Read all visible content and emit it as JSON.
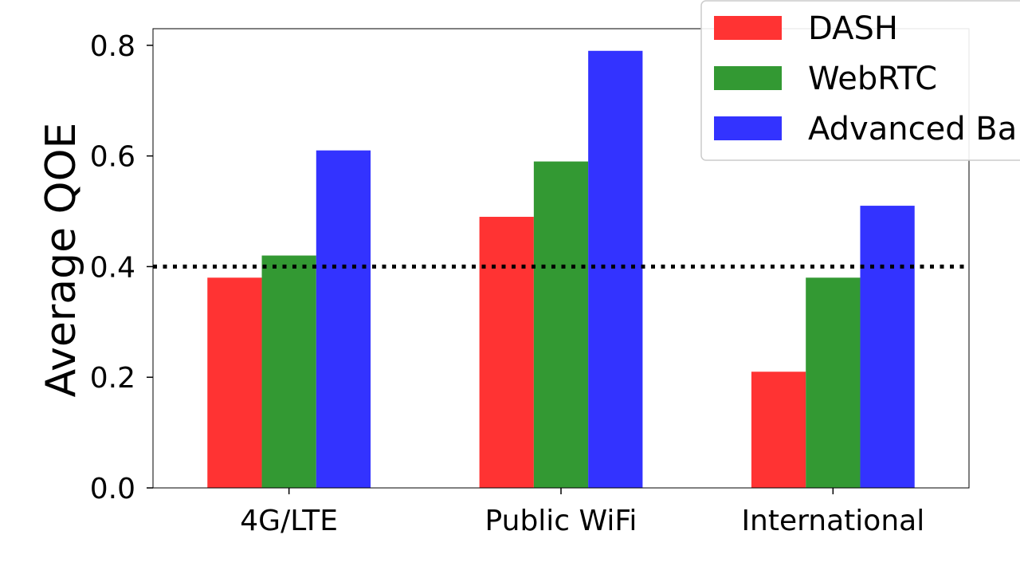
{
  "chart_data": {
    "type": "bar",
    "title": "",
    "xlabel": "",
    "ylabel": "Average QOE",
    "categories": [
      "4G/LTE",
      "Public WiFi",
      "International"
    ],
    "series": [
      {
        "name": "DASH",
        "values": [
          0.38,
          0.49,
          0.21
        ],
        "color": "#ff3333"
      },
      {
        "name": "WebRTC",
        "values": [
          0.42,
          0.59,
          0.38
        ],
        "color": "#339933"
      },
      {
        "name": "Advanced Ba",
        "values": [
          0.61,
          0.79,
          0.51
        ],
        "color": "#3333ff"
      }
    ],
    "ylim": [
      0,
      0.83
    ],
    "yticks": [
      "0.0",
      "0.2",
      "0.4",
      "0.6",
      "0.8"
    ],
    "reference_line": {
      "y": 0.4,
      "style": "dotted",
      "color": "#000000"
    },
    "grid": false,
    "legend_position": "top-right"
  }
}
